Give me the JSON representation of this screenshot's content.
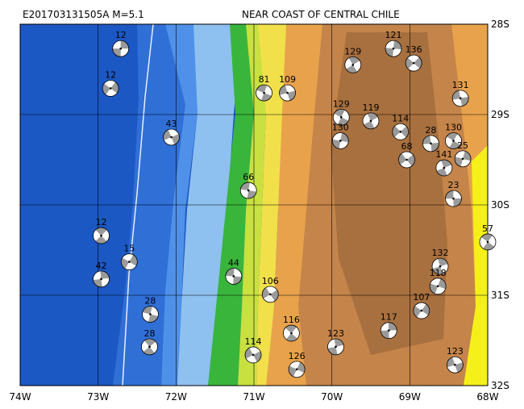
{
  "map": {
    "event_id_magnitude": "E201703131505A M=5.1",
    "region": "NEAR COAST OF CENTRAL CHILE",
    "lonlim": [
      -74,
      -68
    ],
    "latlim": [
      -32,
      -28
    ],
    "lon_ticks": [
      {
        "value": -74,
        "label": "74W"
      },
      {
        "value": -73,
        "label": "73W"
      },
      {
        "value": -72,
        "label": "72W"
      },
      {
        "value": -71,
        "label": "71W"
      },
      {
        "value": -70,
        "label": "70W"
      },
      {
        "value": -69,
        "label": "69W"
      },
      {
        "value": -68,
        "label": "68W"
      }
    ],
    "lat_ticks": [
      {
        "value": -28,
        "label": "28S"
      },
      {
        "value": -29,
        "label": "29S"
      },
      {
        "value": -30,
        "label": "30S"
      },
      {
        "value": -31,
        "label": "31S"
      },
      {
        "value": -32,
        "label": "32S"
      }
    ],
    "grid": true,
    "events": [
      {
        "depth": 12,
        "lon": -72.71,
        "lat": -28.27
      },
      {
        "depth": 12,
        "lon": -72.84,
        "lat": -28.71
      },
      {
        "depth": 109,
        "lon": -70.57,
        "lat": -28.76
      },
      {
        "depth": 81,
        "lon": -70.87,
        "lat": -28.76
      },
      {
        "depth": 129,
        "lon": -69.73,
        "lat": -28.45
      },
      {
        "depth": 121,
        "lon": -69.21,
        "lat": -28.27
      },
      {
        "depth": 136,
        "lon": -68.95,
        "lat": -28.43
      },
      {
        "depth": 131,
        "lon": -68.35,
        "lat": -28.82
      },
      {
        "depth": 129,
        "lon": -69.88,
        "lat": -29.03
      },
      {
        "depth": 119,
        "lon": -69.5,
        "lat": -29.07
      },
      {
        "depth": 130,
        "lon": -69.89,
        "lat": -29.29
      },
      {
        "depth": 114,
        "lon": -69.12,
        "lat": -29.19
      },
      {
        "depth": 28,
        "lon": -68.73,
        "lat": -29.32
      },
      {
        "depth": 130,
        "lon": -68.44,
        "lat": -29.29
      },
      {
        "depth": 141,
        "lon": -68.56,
        "lat": -29.59
      },
      {
        "depth": 25,
        "lon": -68.32,
        "lat": -29.49
      },
      {
        "depth": 68,
        "lon": -69.04,
        "lat": -29.5
      },
      {
        "depth": 23,
        "lon": -68.44,
        "lat": -29.93
      },
      {
        "depth": 57,
        "lon": -68.0,
        "lat": -30.41
      },
      {
        "depth": 132,
        "lon": -68.61,
        "lat": -30.68
      },
      {
        "depth": 118,
        "lon": -68.64,
        "lat": -30.9
      },
      {
        "depth": 106,
        "lon": -70.79,
        "lat": -30.99
      },
      {
        "depth": 44,
        "lon": -71.26,
        "lat": -30.79
      },
      {
        "depth": 116,
        "lon": -70.52,
        "lat": -31.42
      },
      {
        "depth": 123,
        "lon": -69.95,
        "lat": -31.57
      },
      {
        "depth": 126,
        "lon": -70.45,
        "lat": -31.82
      },
      {
        "depth": 114,
        "lon": -71.01,
        "lat": -31.66
      },
      {
        "depth": 66,
        "lon": -71.07,
        "lat": -29.84
      },
      {
        "depth": 12,
        "lon": -72.96,
        "lat": -30.34
      },
      {
        "depth": 42,
        "lon": -72.96,
        "lat": -30.82
      },
      {
        "depth": 15,
        "lon": -72.6,
        "lat": -30.63
      },
      {
        "depth": 43,
        "lon": -72.06,
        "lat": -29.25
      },
      {
        "depth": 28,
        "lon": -72.33,
        "lat": -31.21
      },
      {
        "depth": 28,
        "lon": -72.34,
        "lat": -31.57
      },
      {
        "depth": 117,
        "lon": -69.27,
        "lat": -31.39
      },
      {
        "depth": 107,
        "lon": -68.85,
        "lat": -31.17
      },
      {
        "depth": 123,
        "lon": -68.42,
        "lat": -31.77
      }
    ]
  }
}
